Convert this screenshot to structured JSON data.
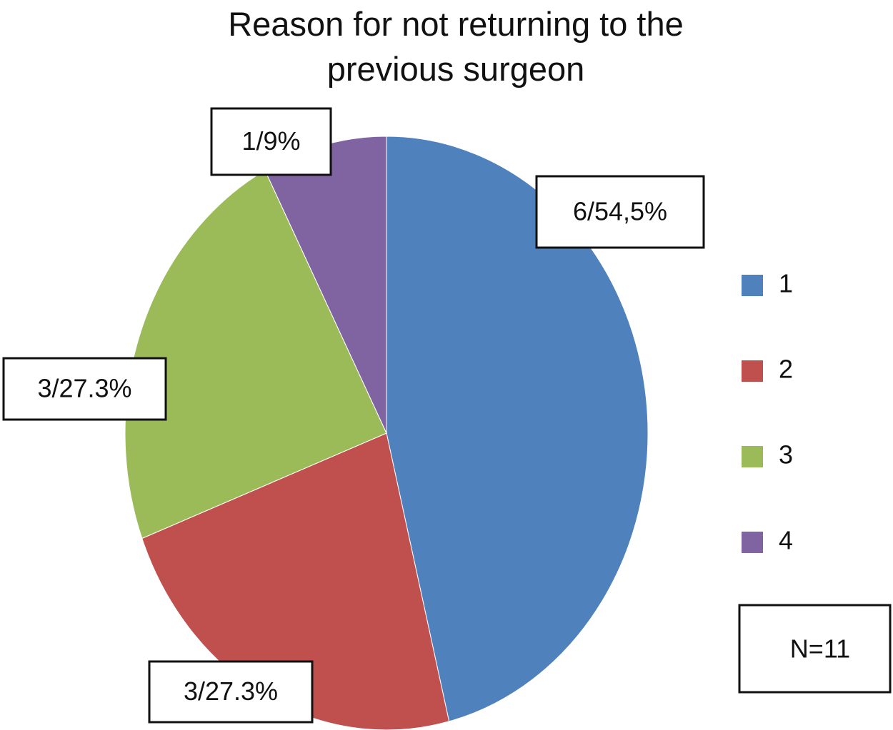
{
  "chart_data": {
    "type": "pie",
    "title": "Reason for not returning to the previous surgeon",
    "categories": [
      "1",
      "2",
      "3",
      "4"
    ],
    "series": [
      {
        "values": [
          6,
          3,
          3,
          1
        ],
        "value_labels": [
          "6/54,5%",
          "3/27.3%",
          "3/27.3%",
          "1/9%"
        ],
        "colors": [
          "#4f81bd",
          "#c0504d",
          "#9bbb59",
          "#8064a2"
        ]
      }
    ],
    "annotation": "N=11",
    "legend": "right"
  }
}
